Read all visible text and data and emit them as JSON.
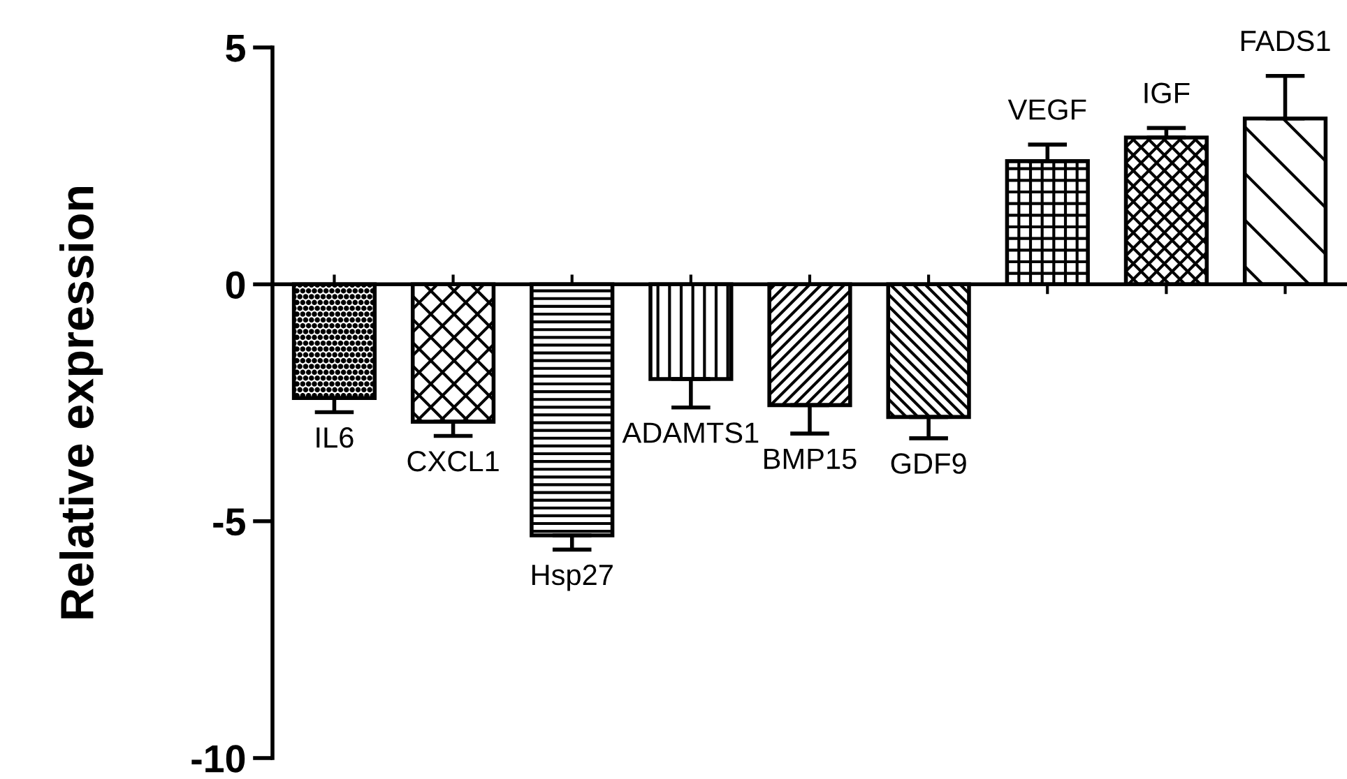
{
  "chart_data": {
    "type": "bar",
    "ylabel": "Relative expression",
    "categories": [
      "IL6",
      "CXCL1",
      "Hsp27",
      "ADAMTS1",
      "BMP15",
      "GDF9",
      "VEGF",
      "IGF",
      "FADS1"
    ],
    "values": [
      -2.4,
      -2.9,
      -5.3,
      -2.0,
      -2.55,
      -2.8,
      2.6,
      3.1,
      3.5
    ],
    "errors": [
      [
        -2.7,
        -2.4
      ],
      [
        -3.2,
        -2.9
      ],
      [
        -5.6,
        -5.3
      ],
      [
        -2.6,
        -2.0
      ],
      [
        -3.15,
        -2.55
      ],
      [
        -3.25,
        -2.8
      ],
      [
        2.6,
        2.95
      ],
      [
        3.1,
        3.3
      ],
      [
        3.5,
        4.4
      ]
    ],
    "ylim": [
      -10,
      5
    ],
    "yticks": [
      -10,
      -5,
      0,
      5
    ],
    "legend": false,
    "tick_labels": "y"
  }
}
